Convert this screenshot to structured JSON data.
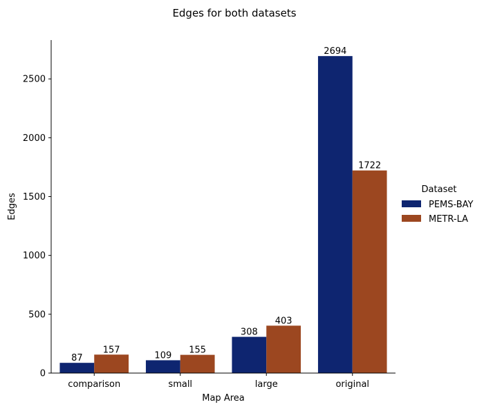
{
  "chart_data": {
    "type": "bar",
    "title": "Edges for both datasets",
    "xlabel": "Map Area",
    "ylabel": "Edges",
    "categories": [
      "comparison",
      "small",
      "large",
      "original"
    ],
    "series": [
      {
        "name": "PEMS-BAY",
        "values": [
          87,
          109,
          308,
          2694
        ],
        "color": "#0e2570"
      },
      {
        "name": "METR-LA",
        "values": [
          157,
          155,
          403,
          1722
        ],
        "color": "#9c4720"
      }
    ],
    "ylim": [
      0,
      2830
    ],
    "yticks": [
      0,
      500,
      1000,
      1500,
      2000,
      2500
    ],
    "data_labels": true,
    "grid": false,
    "legend": {
      "title": "Dataset",
      "placement": "right"
    }
  }
}
